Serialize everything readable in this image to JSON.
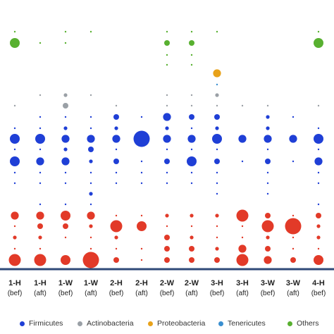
{
  "chart_data": {
    "type": "bubble-matrix",
    "columns": [
      {
        "label": "1-H",
        "sub": "(bef)"
      },
      {
        "label": "1-H",
        "sub": "(aft)"
      },
      {
        "label": "1-W",
        "sub": "(bef)"
      },
      {
        "label": "1-W",
        "sub": "(aft)"
      },
      {
        "label": "2-H",
        "sub": "(bef)"
      },
      {
        "label": "2-H",
        "sub": "(aft)"
      },
      {
        "label": "2-W",
        "sub": "(bef)"
      },
      {
        "label": "2-W",
        "sub": "(aft)"
      },
      {
        "label": "3-H",
        "sub": "(bef)"
      },
      {
        "label": "3-H",
        "sub": "(aft)"
      },
      {
        "label": "3-W",
        "sub": "(bef)"
      },
      {
        "label": "3-W",
        "sub": "(aft)"
      },
      {
        "label": "4-H",
        "sub": "(bef)"
      }
    ],
    "legend": [
      {
        "name": "Firmicutes",
        "color": "#1f3fd6"
      },
      {
        "name": "Actinobacteria",
        "color": "#9aa0a6"
      },
      {
        "name": "Proteobacteria",
        "color": "#e8a21a"
      },
      {
        "name": "Tenericutes",
        "color": "#3a8fd0"
      },
      {
        "name": "Others",
        "color": "#58b030"
      }
    ],
    "rows": [
      {
        "group": "Others",
        "sizes": [
          1,
          0,
          1,
          1,
          0,
          0,
          1,
          1,
          1,
          0,
          0,
          0,
          1
        ]
      },
      {
        "group": "Others",
        "sizes": [
          5,
          1,
          1,
          0,
          0,
          0,
          3,
          3,
          0,
          0,
          0,
          0,
          5
        ]
      },
      {
        "group": "Others",
        "sizes": [
          0,
          0,
          0,
          0,
          0,
          0,
          1,
          1,
          0,
          0,
          0,
          0,
          0
        ]
      },
      {
        "group": "Others",
        "sizes": [
          0,
          0,
          0,
          0,
          0,
          0,
          1,
          1,
          0,
          0,
          0,
          0,
          0
        ]
      },
      {
        "group": "Proteobacteria",
        "sizes": [
          0,
          0,
          0,
          0,
          0,
          0,
          0,
          0,
          4,
          0,
          0,
          0,
          0
        ]
      },
      {
        "group": "Tenericutes",
        "sizes": [
          0,
          0,
          0,
          0,
          0,
          0,
          0,
          0,
          1,
          0,
          0,
          0,
          0
        ]
      },
      {
        "group": "Actinobacteria",
        "sizes": [
          0,
          1,
          2,
          1,
          0,
          0,
          1,
          1,
          2,
          0,
          0,
          0,
          0
        ]
      },
      {
        "group": "Actinobacteria",
        "sizes": [
          1,
          0,
          3,
          0,
          1,
          0,
          1,
          1,
          1,
          1,
          1,
          0,
          1
        ]
      },
      {
        "group": "Firmicutes",
        "sizes": [
          0,
          1,
          1,
          1,
          3,
          1,
          4,
          3,
          3,
          0,
          2,
          1,
          0
        ]
      },
      {
        "group": "Firmicutes",
        "sizes": [
          1,
          1,
          2,
          1,
          2,
          0,
          2,
          1,
          2,
          0,
          2,
          0,
          1
        ]
      },
      {
        "group": "Firmicutes",
        "sizes": [
          5,
          5,
          4,
          4,
          4,
          7,
          4,
          4,
          5,
          4,
          4,
          4,
          5
        ]
      },
      {
        "group": "Firmicutes",
        "sizes": [
          1,
          1,
          2,
          3,
          1,
          0,
          1,
          1,
          1,
          0,
          1,
          0,
          1
        ]
      },
      {
        "group": "Firmicutes",
        "sizes": [
          5,
          4,
          4,
          2,
          3,
          1,
          3,
          5,
          3,
          1,
          3,
          1,
          4
        ]
      },
      {
        "group": "Firmicutes",
        "sizes": [
          1,
          1,
          1,
          1,
          1,
          1,
          1,
          1,
          1,
          0,
          1,
          0,
          1
        ]
      },
      {
        "group": "Firmicutes",
        "sizes": [
          1,
          1,
          1,
          1,
          1,
          1,
          1,
          1,
          1,
          0,
          1,
          0,
          1
        ]
      },
      {
        "group": "Firmicutes",
        "sizes": [
          0,
          0,
          0,
          2,
          0,
          0,
          0,
          0,
          1,
          0,
          1,
          0,
          0
        ]
      },
      {
        "group": "Firmicutes",
        "sizes": [
          0,
          1,
          1,
          1,
          0,
          0,
          0,
          0,
          0,
          0,
          0,
          0,
          1
        ]
      },
      {
        "group": "Red",
        "sizes": [
          4,
          4,
          5,
          4,
          1,
          1,
          2,
          2,
          2,
          6,
          3,
          1,
          3
        ]
      },
      {
        "group": "Red",
        "sizes": [
          1,
          3,
          3,
          2,
          6,
          5,
          1,
          1,
          1,
          1,
          6,
          7,
          2
        ]
      },
      {
        "group": "Red",
        "sizes": [
          2,
          2,
          1,
          1,
          2,
          0,
          3,
          2,
          1,
          1,
          2,
          1,
          2
        ]
      },
      {
        "group": "Red",
        "sizes": [
          1,
          1,
          0,
          1,
          1,
          1,
          3,
          3,
          2,
          4,
          3,
          1,
          1
        ]
      },
      {
        "group": "Red",
        "sizes": [
          6,
          6,
          5,
          7,
          3,
          1,
          3,
          3,
          3,
          6,
          4,
          3,
          5
        ]
      }
    ],
    "group_colors": {
      "Firmicutes": "#1f3fd6",
      "Actinobacteria": "#9aa0a6",
      "Proteobacteria": "#e8a21a",
      "Tenericutes": "#3a8fd0",
      "Others": "#58b030",
      "Red": "#e23a28"
    },
    "axis_color": "#2f4a78"
  }
}
